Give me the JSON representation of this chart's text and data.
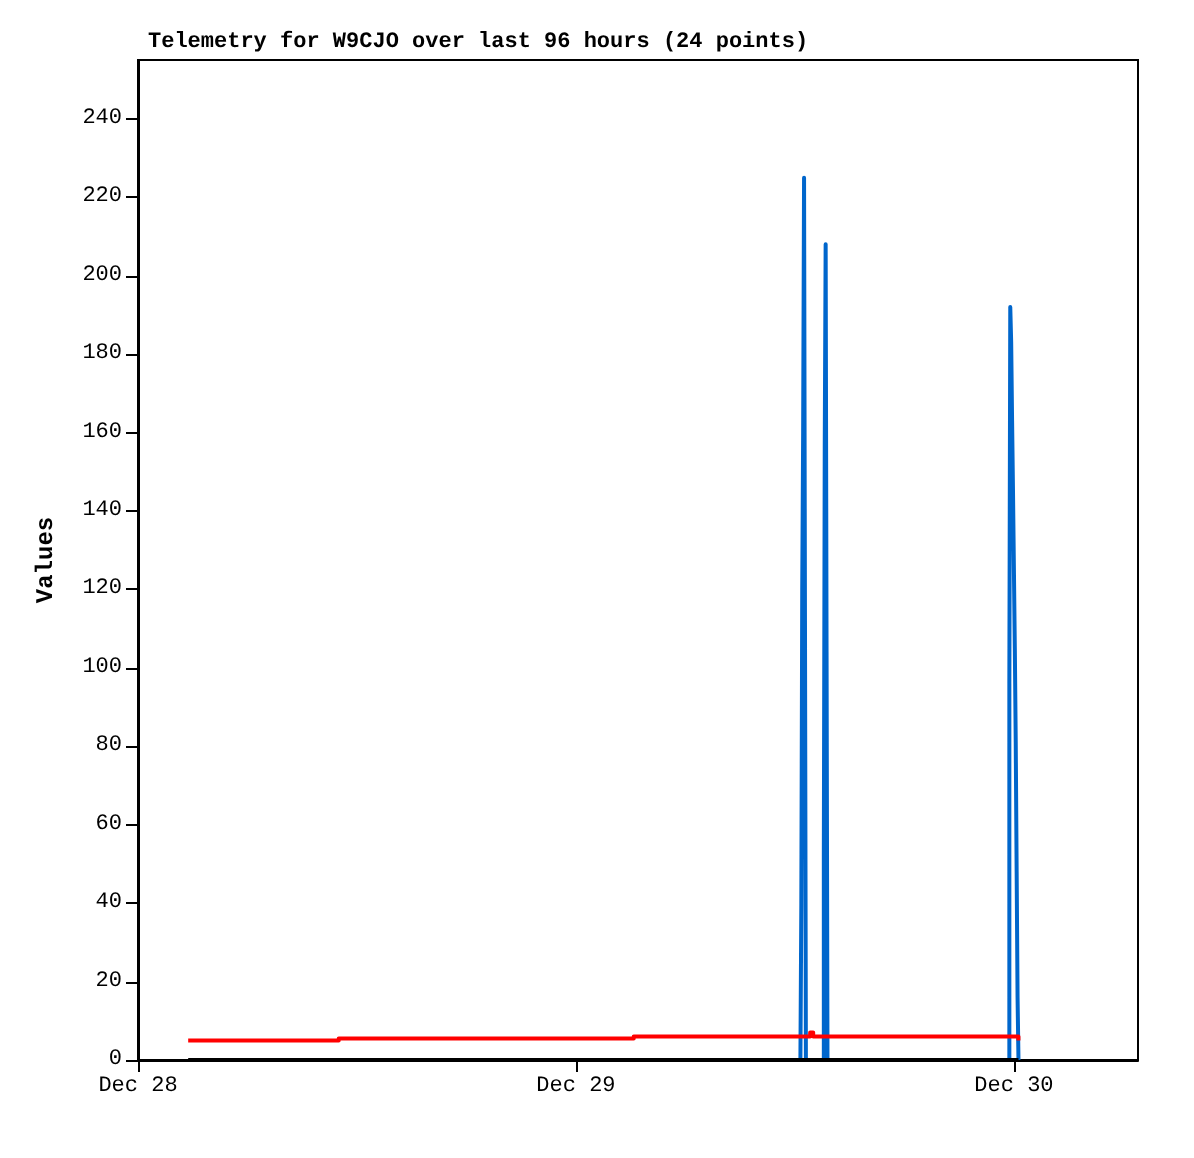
{
  "chart_data": {
    "type": "step",
    "title": "Telemetry for W9CJO over last 96 hours (24 points)",
    "ylabel": "Values",
    "xlim": [
      "--12-28T00:00",
      "--12-30T06:48"
    ],
    "xticks": [
      {
        "value": "--12-28T00:00",
        "label": "Dec 28"
      },
      {
        "value": "--12-29T00:00",
        "label": "Dec 29"
      },
      {
        "value": "--12-30T00:00",
        "label": "Dec 30"
      }
    ],
    "ylim": [
      0,
      255
    ],
    "yticks": [
      0,
      20,
      40,
      60,
      80,
      100,
      120,
      140,
      160,
      180,
      200,
      220,
      240
    ],
    "grid": false,
    "marker": "none",
    "line_style": "solid",
    "series": [
      {
        "color": "#0066cc",
        "x": [
          "--12-29T12:18",
          "--12-29T12:21",
          "--12-29T12:24",
          "--12-29T12:27",
          "--12-29T12:30",
          "--12-29T12:33",
          "--12-29T12:36",
          "--12-29T13:35",
          "--12-29T13:38",
          "--12-29T13:41",
          "--12-29T13:44",
          "--12-29T13:47",
          "--12-29T23:45",
          "--12-29T23:48",
          "--12-29T23:51",
          "--12-29T23:54",
          "--12-29T23:57",
          "--12-30T00:00",
          "--12-30T00:03",
          "--12-30T00:06",
          "--12-30T00:09",
          "--12-30T00:12",
          "--12-30T00:15"
        ],
        "values": [
          0,
          40,
          120,
          160,
          225,
          112,
          0,
          52,
          156,
          208,
          104,
          0,
          96,
          192,
          183,
          163,
          145,
          125,
          105,
          81,
          48,
          16,
          0
        ]
      },
      {
        "color": "#ff0000",
        "x": [
          "--12-28T02:45",
          "--12-28T11:00",
          "--12-29T03:10",
          "--12-29T12:40",
          "--12-29T12:50",
          "--12-29T13:00",
          "--12-29T23:55",
          "--12-30T00:15"
        ],
        "values": [
          5,
          5.5,
          6,
          6,
          7,
          6,
          6,
          5
        ]
      },
      {
        "color": "#000000",
        "x": [
          "--12-28T02:45",
          "--12-30T00:15"
        ],
        "values": [
          0,
          0
        ]
      }
    ]
  }
}
